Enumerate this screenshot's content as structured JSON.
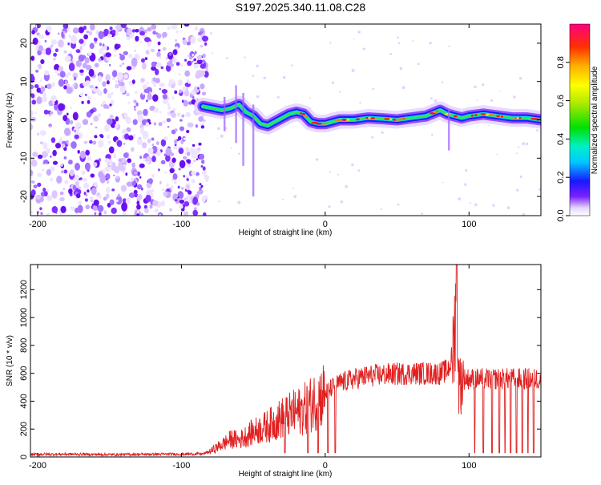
{
  "title": "S197.2025.340.11.08.C28",
  "colors": {
    "signal": "#e02020",
    "axis": "#000000",
    "background": "#ffffff"
  },
  "chart_data": [
    {
      "type": "heatmap",
      "xlabel": "Height of straight line (km)",
      "ylabel": "Frequency (Hz)",
      "xlim": [
        -205,
        150
      ],
      "ylim": [
        -25,
        25
      ],
      "xticks": [
        -200,
        -100,
        0,
        100
      ],
      "xtick_labels": [
        "-200",
        "-100",
        "0",
        "100"
      ],
      "yticks": [
        -20,
        -10,
        0,
        10,
        20
      ],
      "ytick_labels": [
        "-20",
        "-10",
        "0",
        "10",
        "20"
      ],
      "colorbar": {
        "label": "Normalized spectral amplitude",
        "range": [
          0,
          1
        ],
        "ticks": [
          0.0,
          0.2,
          0.4,
          0.6,
          0.8
        ],
        "tick_labels": [
          "0.0",
          "0.2",
          "0.4",
          "0.6",
          "0.8"
        ]
      },
      "ridge": {
        "x": [
          -85,
          -78,
          -72,
          -66,
          -60,
          -55,
          -50,
          -45,
          -40,
          -35,
          -30,
          -25,
          -20,
          -15,
          -10,
          -5,
          0,
          10,
          20,
          30,
          40,
          50,
          60,
          70,
          80,
          85,
          90,
          95,
          100,
          110,
          120,
          130,
          140,
          150
        ],
        "y": [
          3.5,
          3,
          2.5,
          3,
          4,
          2,
          1,
          -1,
          -1.5,
          -0.5,
          0.5,
          1.5,
          2,
          1.5,
          -0.5,
          -1,
          -1,
          0,
          0,
          0.5,
          0.3,
          0,
          0.5,
          1,
          2.5,
          1.5,
          1,
          0.5,
          1,
          1.5,
          1,
          0.5,
          0.5,
          0
        ]
      },
      "noise_region": {
        "x_range": [
          -205,
          -82
        ]
      }
    },
    {
      "type": "line",
      "xlabel": "Height of straight line (km)",
      "ylabel": "SNR (10 * v/v)",
      "xlim": [
        -205,
        150
      ],
      "ylim": [
        0,
        1380
      ],
      "xticks": [
        -200,
        -100,
        0,
        100
      ],
      "xtick_labels": [
        "-200",
        "-100",
        "0",
        "100"
      ],
      "yticks": [
        0,
        200,
        400,
        600,
        800,
        1000,
        1200
      ],
      "ytick_labels": [
        "0",
        "200",
        "400",
        "600",
        "800",
        "1000",
        "1200"
      ],
      "series": [
        {
          "name": "SNR",
          "x": [
            -205,
            -180,
            -150,
            -120,
            -100,
            -85,
            -80,
            -75,
            -70,
            -65,
            -60,
            -55,
            -50,
            -45,
            -40,
            -35,
            -30,
            -25,
            -20,
            -15,
            -10,
            -5,
            0,
            5,
            10,
            20,
            30,
            40,
            50,
            60,
            70,
            80,
            85,
            88,
            90,
            91,
            92,
            93,
            95,
            100,
            110,
            120,
            130,
            140,
            150
          ],
          "y": [
            18,
            20,
            17,
            19,
            20,
            22,
            40,
            70,
            100,
            130,
            120,
            150,
            180,
            200,
            220,
            250,
            280,
            300,
            320,
            340,
            380,
            420,
            460,
            500,
            530,
            560,
            580,
            590,
            595,
            600,
            600,
            600,
            620,
            700,
            900,
            1380,
            1000,
            500,
            560,
            560,
            560,
            560,
            560,
            560,
            560
          ]
        }
      ],
      "dropouts_x": [
        -28,
        -12,
        -5,
        2,
        7,
        104,
        110,
        116,
        121,
        125,
        129,
        133,
        137,
        141,
        145
      ]
    }
  ]
}
